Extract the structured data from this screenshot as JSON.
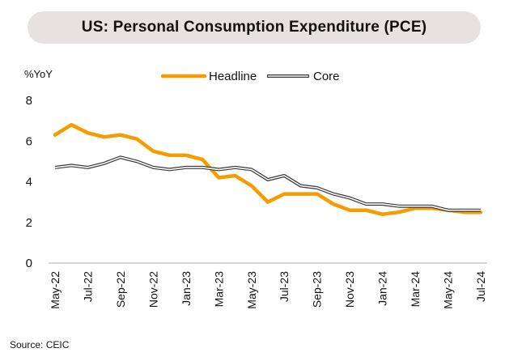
{
  "title": "US: Personal Consumption Expenditure (PCE)",
  "source": "Source: CEIC",
  "colors": {
    "headline": "#f59c00",
    "core_outer": "#3a3a3a",
    "core_inner": "#ffffff",
    "axis": "#bdbdbd"
  },
  "chart_data": {
    "type": "line",
    "title": "US: Personal Consumption Expenditure (PCE)",
    "ylabel": "%YoY",
    "xlabel": "",
    "ylim": [
      0,
      8
    ],
    "yticks": [
      0,
      2,
      4,
      6,
      8
    ],
    "grid": false,
    "legend": "top-center",
    "x": [
      "May-22",
      "Jun-22",
      "Jul-22",
      "Aug-22",
      "Sep-22",
      "Oct-22",
      "Nov-22",
      "Dec-22",
      "Jan-23",
      "Feb-23",
      "Mar-23",
      "Apr-23",
      "May-23",
      "Jun-23",
      "Jul-23",
      "Aug-23",
      "Sep-23",
      "Oct-23",
      "Nov-23",
      "Dec-23",
      "Jan-24",
      "Feb-24",
      "Mar-24",
      "Apr-24",
      "May-24",
      "Jun-24",
      "Jul-24"
    ],
    "xtick_labels": [
      "May-22",
      "Jul-22",
      "Sep-22",
      "Nov-22",
      "Jan-23",
      "Mar-23",
      "May-23",
      "Jul-23",
      "Sep-23",
      "Nov-23",
      "Jan-24",
      "Mar-24",
      "May-24",
      "Jul-24"
    ],
    "series": [
      {
        "name": "Headline",
        "values": [
          6.3,
          6.8,
          6.4,
          6.2,
          6.3,
          6.1,
          5.5,
          5.3,
          5.3,
          5.1,
          4.2,
          4.3,
          3.8,
          3.0,
          3.4,
          3.4,
          3.4,
          2.9,
          2.6,
          2.6,
          2.4,
          2.5,
          2.7,
          2.7,
          2.6,
          2.5,
          2.5
        ]
      },
      {
        "name": "Core",
        "values": [
          4.7,
          4.8,
          4.7,
          4.9,
          5.2,
          5.0,
          4.7,
          4.6,
          4.7,
          4.7,
          4.6,
          4.7,
          4.6,
          4.1,
          4.3,
          3.8,
          3.7,
          3.4,
          3.2,
          2.9,
          2.9,
          2.8,
          2.8,
          2.8,
          2.6,
          2.6,
          2.6
        ]
      }
    ]
  }
}
